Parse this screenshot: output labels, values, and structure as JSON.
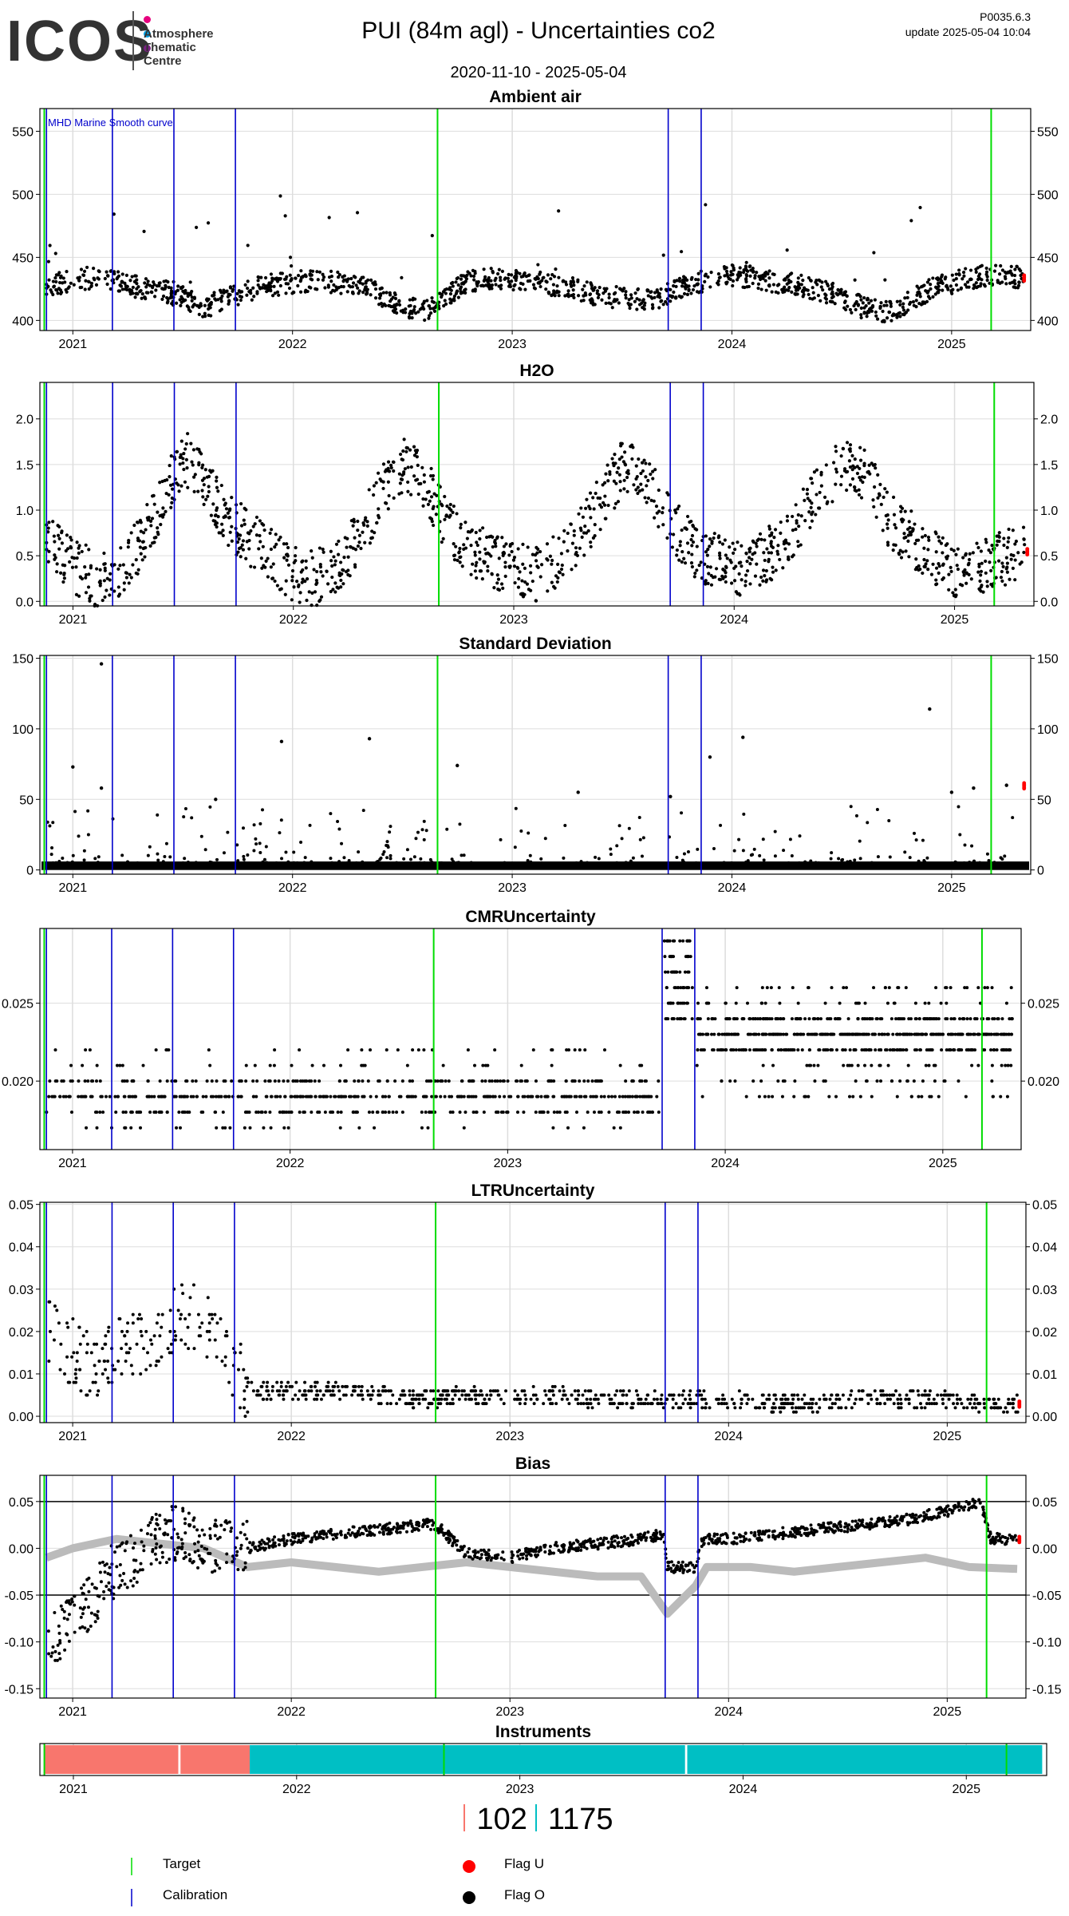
{
  "header": {
    "logo_text": "ICOS",
    "logo_subtitle": [
      "Atmosphere",
      "Thematic",
      "Centre"
    ],
    "logo_dot_colors": [
      "#e6007e",
      "#00a0e3",
      "#7a2182"
    ],
    "title": "PUI  (84m agl) - Uncertainties co2",
    "date_range": "2020-11-10 - 2025-05-04",
    "version": "P0035.6.3",
    "update": "update  2025-05-04 10:04"
  },
  "colors": {
    "target": "#00dd00",
    "calibration": "#0000cc",
    "flag_u": "#ff0000",
    "flag_o": "#000000",
    "smooth_curve": "#bbbbbb",
    "instrument_a": "#f8766d",
    "instrument_b": "#00bfc4",
    "grid": "#dddddd"
  },
  "events": {
    "target": [
      2020.87,
      2022.66,
      2025.18
    ],
    "calibration": [
      2020.88,
      2021.18,
      2021.46,
      2021.74,
      2023.71,
      2023.86
    ]
  },
  "chart_data": [
    {
      "type": "scatter",
      "title": "Ambient air",
      "annotation": "MHD Marine Smooth curve",
      "xlim": [
        2020.85,
        2025.36
      ],
      "ylim": [
        392,
        568
      ],
      "yticks": [
        400,
        450,
        500,
        550
      ],
      "ytick_labels": [
        "400",
        "450",
        "500",
        "550"
      ],
      "xticks": [
        2021,
        2022,
        2023,
        2024,
        2025
      ],
      "x_tick_labels": [
        "2021",
        "2022",
        "2023",
        "2024",
        "2025"
      ],
      "series": [
        {
          "x": [
            2020.9,
            2021.0,
            2021.1,
            2021.2,
            2021.3,
            2021.4,
            2021.5,
            2021.6,
            2021.7,
            2021.8,
            2021.9,
            2022.0,
            2022.1,
            2022.2,
            2022.3,
            2022.4,
            2022.5,
            2022.6,
            2022.7,
            2022.8,
            2022.9,
            2023.0,
            2023.1,
            2023.2,
            2023.3,
            2023.4,
            2023.5,
            2023.6,
            2023.7,
            2023.8,
            2023.9,
            2024.0,
            2024.1,
            2024.2,
            2024.3,
            2024.4,
            2024.5,
            2024.6,
            2024.7,
            2024.8,
            2024.9,
            2025.0,
            2025.1,
            2025.2,
            2025.3
          ],
          "y": [
            428,
            432,
            434,
            430,
            426,
            424,
            418,
            410,
            418,
            424,
            428,
            430,
            432,
            430,
            428,
            420,
            412,
            408,
            420,
            430,
            434,
            432,
            430,
            428,
            424,
            420,
            418,
            416,
            420,
            428,
            432,
            436,
            434,
            430,
            428,
            424,
            418,
            410,
            406,
            414,
            424,
            430,
            434,
            436,
            434
          ]
        }
      ]
    },
    {
      "type": "scatter",
      "title": "H2O",
      "xlim": [
        2020.85,
        2025.36
      ],
      "ylim": [
        -0.05,
        2.4
      ],
      "yticks": [
        0,
        0.5,
        1,
        1.5,
        2
      ],
      "ytick_labels": [
        "0.0",
        "0.5",
        "1.0",
        "1.5",
        "2.0"
      ],
      "xticks": [
        2021,
        2022,
        2023,
        2024,
        2025
      ],
      "x_tick_labels": [
        "2021",
        "2022",
        "2023",
        "2024",
        "2025"
      ],
      "series": [
        {
          "x": [
            2020.9,
            2021.0,
            2021.1,
            2021.2,
            2021.3,
            2021.4,
            2021.5,
            2021.6,
            2021.7,
            2021.8,
            2021.9,
            2022.0,
            2022.1,
            2022.2,
            2022.3,
            2022.4,
            2022.5,
            2022.6,
            2022.7,
            2022.8,
            2022.9,
            2023.0,
            2023.1,
            2023.2,
            2023.3,
            2023.4,
            2023.5,
            2023.6,
            2023.7,
            2023.8,
            2023.9,
            2024.0,
            2024.1,
            2024.2,
            2024.3,
            2024.4,
            2024.5,
            2024.6,
            2024.7,
            2024.8,
            2024.9,
            2025.0,
            2025.1,
            2025.2,
            2025.3
          ],
          "y": [
            0.6,
            0.4,
            0.25,
            0.3,
            0.6,
            1.1,
            1.6,
            1.3,
            0.9,
            0.7,
            0.5,
            0.3,
            0.25,
            0.4,
            0.7,
            1.2,
            1.5,
            1.3,
            0.8,
            0.6,
            0.45,
            0.35,
            0.3,
            0.45,
            0.7,
            1.1,
            1.5,
            1.4,
            0.9,
            0.6,
            0.45,
            0.35,
            0.4,
            0.6,
            0.9,
            1.3,
            1.5,
            1.4,
            0.9,
            0.7,
            0.5,
            0.35,
            0.35,
            0.45,
            0.55
          ]
        }
      ]
    },
    {
      "type": "scatter",
      "title": "Standard Deviation",
      "xlim": [
        2020.85,
        2025.36
      ],
      "ylim": [
        -3,
        152
      ],
      "yticks": [
        0,
        50,
        100,
        150
      ],
      "ytick_labels": [
        "0",
        "50",
        "100",
        "150"
      ],
      "xticks": [
        2021,
        2022,
        2023,
        2024,
        2025
      ],
      "x_tick_labels": [
        "2021",
        "2022",
        "2023",
        "2024",
        "2025"
      ],
      "series": [
        {
          "x": [
            2021.13,
            2021.0,
            2021.13,
            2021.65,
            2021.95,
            2022.35,
            2022.75,
            2023.3,
            2023.72,
            2023.9,
            2024.05,
            2024.9,
            2025.0,
            2025.1,
            2025.25
          ],
          "y": [
            146,
            73,
            58,
            50,
            91,
            93,
            74,
            55,
            52,
            80,
            94,
            114,
            55,
            58,
            60
          ]
        }
      ]
    },
    {
      "type": "scatter",
      "title": "CMRUncertainty",
      "xlim": [
        2020.85,
        2025.36
      ],
      "ylim": [
        0.0156,
        0.0298
      ],
      "yticks": [
        0.02,
        0.025
      ],
      "ytick_labels": [
        "0.020",
        "0.025"
      ],
      "xticks": [
        2021,
        2022,
        2023,
        2024,
        2025
      ],
      "x_tick_labels": [
        "2021",
        "2022",
        "2023",
        "2024",
        "2025"
      ],
      "series": [
        {
          "x": [
            2020.87,
            2023.71,
            2023.71,
            2023.86,
            2025.3
          ],
          "y": [
            0.019,
            0.019,
            0.025,
            0.023,
            0.023
          ]
        }
      ]
    },
    {
      "type": "scatter",
      "title": "LTRUncertainty",
      "xlim": [
        2020.85,
        2025.36
      ],
      "ylim": [
        -0.0015,
        0.0505
      ],
      "yticks": [
        0,
        0.01,
        0.02,
        0.03,
        0.04,
        0.05
      ],
      "ytick_labels": [
        "0.00",
        "0.01",
        "0.02",
        "0.03",
        "0.04",
        "0.05"
      ],
      "xticks": [
        2021,
        2022,
        2023,
        2024,
        2025
      ],
      "x_tick_labels": [
        "2021",
        "2022",
        "2023",
        "2024",
        "2025"
      ],
      "series": [
        {
          "x": [
            2020.9,
            2021.0,
            2021.1,
            2021.2,
            2021.3,
            2021.4,
            2021.5,
            2021.6,
            2021.7,
            2021.8,
            2021.9,
            2022.0,
            2022.2,
            2022.4,
            2022.6,
            2022.8,
            2023.0,
            2023.2,
            2023.4,
            2023.6,
            2023.8,
            2024.0,
            2024.2,
            2024.4,
            2024.6,
            2024.8,
            2025.0,
            2025.2,
            2025.3
          ],
          "y": [
            0.02,
            0.015,
            0.012,
            0.015,
            0.018,
            0.02,
            0.025,
            0.022,
            0.015,
            0.006,
            0.006,
            0.006,
            0.006,
            0.005,
            0.004,
            0.005,
            0.005,
            0.005,
            0.004,
            0.004,
            0.004,
            0.004,
            0.003,
            0.003,
            0.004,
            0.004,
            0.004,
            0.003,
            0.003
          ]
        }
      ]
    },
    {
      "type": "line",
      "title": "Bias",
      "xlim": [
        2020.85,
        2025.36
      ],
      "ylim": [
        -0.16,
        0.078
      ],
      "yticks": [
        -0.15,
        -0.1,
        -0.05,
        0,
        0.05
      ],
      "ytick_labels": [
        "-0.15",
        "-0.10",
        "-0.05",
        "0.00",
        "0.05"
      ],
      "reference_lines": [
        0.05,
        -0.05
      ],
      "xticks": [
        2021,
        2022,
        2023,
        2024,
        2025
      ],
      "x_tick_labels": [
        "2021",
        "2022",
        "2023",
        "2024",
        "2025"
      ],
      "series": [
        {
          "x": [
            2020.88,
            2021.0,
            2021.1,
            2021.2,
            2021.3,
            2021.4,
            2021.5,
            2021.6,
            2021.7,
            2021.8,
            2022.0,
            2022.2,
            2022.4,
            2022.6,
            2022.66,
            2022.8,
            2023.0,
            2023.2,
            2023.4,
            2023.6,
            2023.7,
            2023.72,
            2023.85,
            2023.88,
            2024.0,
            2024.2,
            2024.4,
            2024.6,
            2024.8,
            2025.0,
            2025.15,
            2025.2,
            2025.32
          ],
          "y": [
            -0.1,
            -0.08,
            -0.05,
            -0.02,
            -0.01,
            0.01,
            0.02,
            0.0,
            0.01,
            0.0,
            0.01,
            0.015,
            0.02,
            0.025,
            0.025,
            -0.005,
            -0.01,
            0.0,
            0.005,
            0.01,
            0.015,
            -0.02,
            -0.02,
            0.01,
            0.01,
            0.015,
            0.02,
            0.025,
            0.03,
            0.04,
            0.05,
            0.01,
            0.01
          ]
        },
        {
          "x": [
            2020.88,
            2021.0,
            2021.2,
            2021.4,
            2021.6,
            2021.8,
            2022.0,
            2022.2,
            2022.4,
            2022.6,
            2022.8,
            2023.0,
            2023.2,
            2023.4,
            2023.6,
            2023.72,
            2023.85,
            2023.9,
            2024.1,
            2024.3,
            2024.5,
            2024.7,
            2024.9,
            2025.1,
            2025.32
          ],
          "y": [
            -0.01,
            0.0,
            0.01,
            0.005,
            0.0,
            -0.02,
            -0.015,
            -0.02,
            -0.025,
            -0.02,
            -0.015,
            -0.02,
            -0.025,
            -0.03,
            -0.03,
            -0.07,
            -0.04,
            -0.02,
            -0.02,
            -0.025,
            -0.02,
            -0.015,
            -0.01,
            -0.02,
            -0.022
          ]
        }
      ]
    },
    {
      "type": "bar",
      "title": "Instruments",
      "xlim": [
        2020.85,
        2025.36
      ],
      "xticks": [
        2021,
        2022,
        2023,
        2024,
        2025
      ],
      "x_tick_labels": [
        "2021",
        "2022",
        "2023",
        "2024",
        "2025"
      ],
      "segments": [
        {
          "instrument": "102",
          "start": 2020.87,
          "end": 2021.47
        },
        {
          "instrument": "102",
          "start": 2021.48,
          "end": 2021.79
        },
        {
          "instrument": "1175",
          "start": 2021.79,
          "end": 2023.74
        },
        {
          "instrument": "1175",
          "start": 2023.75,
          "end": 2025.34
        }
      ]
    }
  ],
  "instruments": {
    "first": "102",
    "second": "1175"
  },
  "legend": {
    "target": "Target",
    "calibration": "Calibration",
    "flag_u": "Flag U",
    "flag_o": "Flag O"
  }
}
